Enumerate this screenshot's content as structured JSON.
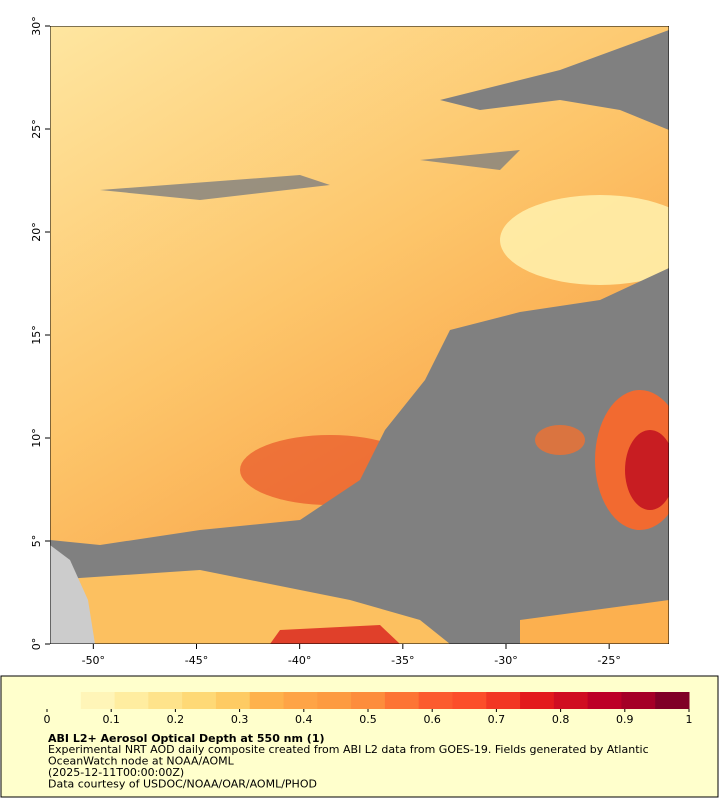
{
  "map": {
    "xlim": [
      -52.1,
      -22.1
    ],
    "ylim": [
      0,
      30
    ],
    "xticks": [
      {
        "value": -50,
        "label": "-50°"
      },
      {
        "value": -45,
        "label": "-45°"
      },
      {
        "value": -40,
        "label": "-40°"
      },
      {
        "value": -35,
        "label": "-35°"
      },
      {
        "value": -30,
        "label": "-30°"
      },
      {
        "value": -25,
        "label": "-25°"
      }
    ],
    "yticks": [
      {
        "value": 0,
        "label": "0°"
      },
      {
        "value": 5,
        "label": "5°"
      },
      {
        "value": 10,
        "label": "10°"
      },
      {
        "value": 15,
        "label": "15°"
      },
      {
        "value": 20,
        "label": "20°"
      },
      {
        "value": 25,
        "label": "25°"
      },
      {
        "value": 30,
        "label": "30°"
      }
    ]
  },
  "colorbar": {
    "lim": [
      0,
      1
    ],
    "ticks": [
      0,
      0.1,
      0.2,
      0.3,
      0.4,
      0.5,
      0.6,
      0.7,
      0.8,
      0.9,
      1
    ],
    "colors": [
      "#ffffcc",
      "#fff5b8",
      "#ffeda0",
      "#fee38b",
      "#fed976",
      "#fecb63",
      "#feb24c",
      "#fea446",
      "#fd9b41",
      "#fd8d3c",
      "#fd7434",
      "#fc5b2e",
      "#fc4e2a",
      "#f23724",
      "#e31a1c",
      "#d00d21",
      "#bd0026",
      "#a50026",
      "#800026"
    ]
  },
  "caption": {
    "title": "ABI L2+ Aerosol Optical Depth at 550 nm (1)",
    "lines": [
      "Experimental NRT AOD daily composite created from ABI L2 data from GOES-19. Fields generated by Atlantic",
      "OceanWatch node at NOAA/AOML",
      "(2025-12-11T00:00:00Z)",
      "Data courtesy of USDOC/NOAA/OAR/AOML/PHOD"
    ]
  }
}
